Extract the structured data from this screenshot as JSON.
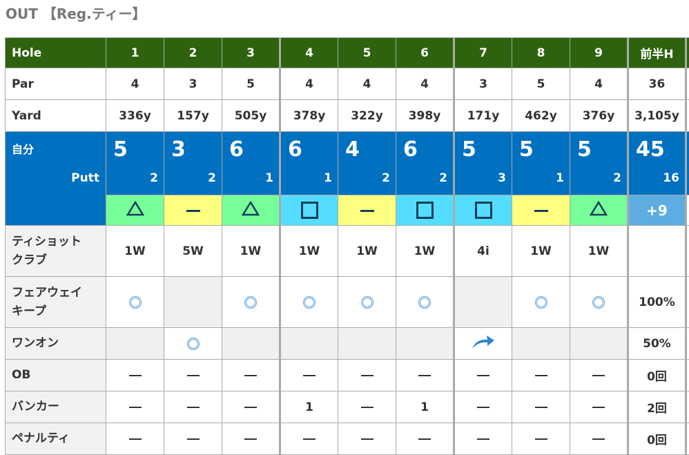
{
  "title": "OUT 【Reg.ティー】",
  "header": {
    "label": "Hole",
    "holes": [
      "1",
      "2",
      "3",
      "4",
      "5",
      "6",
      "7",
      "8",
      "9"
    ],
    "summary": "前半H"
  },
  "par": {
    "label": "Par",
    "values": [
      "4",
      "3",
      "5",
      "4",
      "4",
      "4",
      "3",
      "5",
      "4"
    ],
    "summary": "36"
  },
  "yard": {
    "label": "Yard",
    "values": [
      "336y",
      "157y",
      "505y",
      "378y",
      "322y",
      "398y",
      "171y",
      "462y",
      "376y"
    ],
    "summary": "3,105y"
  },
  "score": {
    "label": "自分",
    "putt_label": "Putt",
    "strokes": [
      "5",
      "3",
      "6",
      "6",
      "4",
      "6",
      "5",
      "5",
      "5"
    ],
    "putts": [
      "2",
      "2",
      "1",
      "1",
      "2",
      "2",
      "3",
      "1",
      "2"
    ],
    "total": "45",
    "total_putts": "16",
    "marks": [
      "bogey",
      "par",
      "bogey",
      "double-bogey",
      "par",
      "double-bogey",
      "double-bogey",
      "par",
      "bogey"
    ],
    "to_par": "+9",
    "colors": {
      "bogey": "#77ff99",
      "par": "#ffff80",
      "double-bogey": "#55ddff",
      "summary": "#5dade2",
      "score_bg": "#0070c0",
      "header_bg": "#2e620e"
    }
  },
  "tee_club": {
    "label": "ティショット\nクラブ",
    "values": [
      "1W",
      "5W",
      "1W",
      "1W",
      "1W",
      "1W",
      "4i",
      "1W",
      "1W"
    ],
    "summary": ""
  },
  "fairway": {
    "label": "フェアウェイ\nキープ",
    "values": [
      "hit",
      "n/a",
      "hit",
      "hit",
      "hit",
      "hit",
      "n/a",
      "hit",
      "hit"
    ],
    "summary": "100%"
  },
  "one_on": {
    "label": "ワンオン",
    "values": [
      "n/a",
      "hit",
      "n/a",
      "n/a",
      "n/a",
      "n/a",
      "miss-right",
      "n/a",
      "n/a"
    ],
    "summary": "50%"
  },
  "ob": {
    "label": "OB",
    "values": [
      "",
      "",
      "",
      "",
      "",
      "",
      "",
      "",
      ""
    ],
    "summary": "0回"
  },
  "bunker": {
    "label": "バンカー",
    "values": [
      "",
      "",
      "",
      "1",
      "",
      "1",
      "",
      "",
      ""
    ],
    "summary": "2回"
  },
  "penalty": {
    "label": "ペナルティ",
    "values": [
      "",
      "",
      "",
      "",
      "",
      "",
      "",
      "",
      ""
    ],
    "summary": "0回"
  }
}
